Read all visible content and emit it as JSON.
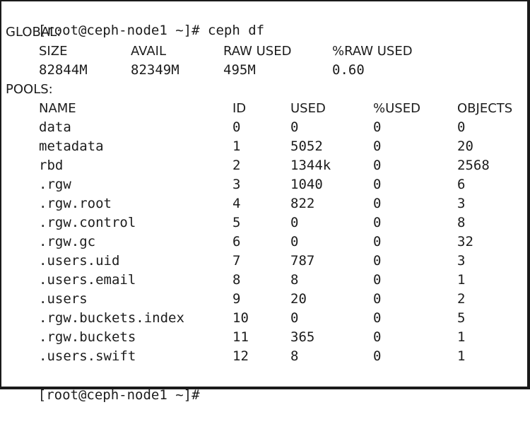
{
  "terminal": {
    "prompt": "[root@ceph-node1 ~]#",
    "command": "ceph df",
    "final_prompt": "[root@ceph-node1 ~]#"
  },
  "global": {
    "label": "GLOBAL:",
    "headers": [
      "SIZE",
      "AVAIL",
      "RAW USED",
      "%RAW USED"
    ],
    "values": [
      "82844M",
      "82349M",
      "495M",
      "0.60"
    ]
  },
  "pools": {
    "label": "POOLS:",
    "headers": [
      "NAME",
      "ID",
      "USED",
      "%USED",
      "OBJECTS"
    ],
    "rows": [
      [
        "data",
        "0",
        "0",
        "0",
        "0"
      ],
      [
        "metadata",
        "1",
        "5052",
        "0",
        "20"
      ],
      [
        "rbd",
        "2",
        "1344k",
        "0",
        "2568"
      ],
      [
        ".rgw",
        "3",
        "1040",
        "0",
        "6"
      ],
      [
        ".rgw.root",
        "4",
        "822",
        "0",
        "3"
      ],
      [
        ".rgw.control",
        "5",
        "0",
        "0",
        "8"
      ],
      [
        ".rgw.gc",
        "6",
        "0",
        "0",
        "32"
      ],
      [
        ".users.uid",
        "7",
        "787",
        "0",
        "3"
      ],
      [
        ".users.email",
        "8",
        "8",
        "0",
        "1"
      ],
      [
        ".users",
        "9",
        "20",
        "0",
        "2"
      ],
      [
        ".rgw.buckets.index",
        "10",
        "0",
        "0",
        "5"
      ],
      [
        ".rgw.buckets",
        "11",
        "365",
        "0",
        "1"
      ],
      [
        ".users.swift",
        "12",
        "8",
        "0",
        "1"
      ]
    ]
  }
}
